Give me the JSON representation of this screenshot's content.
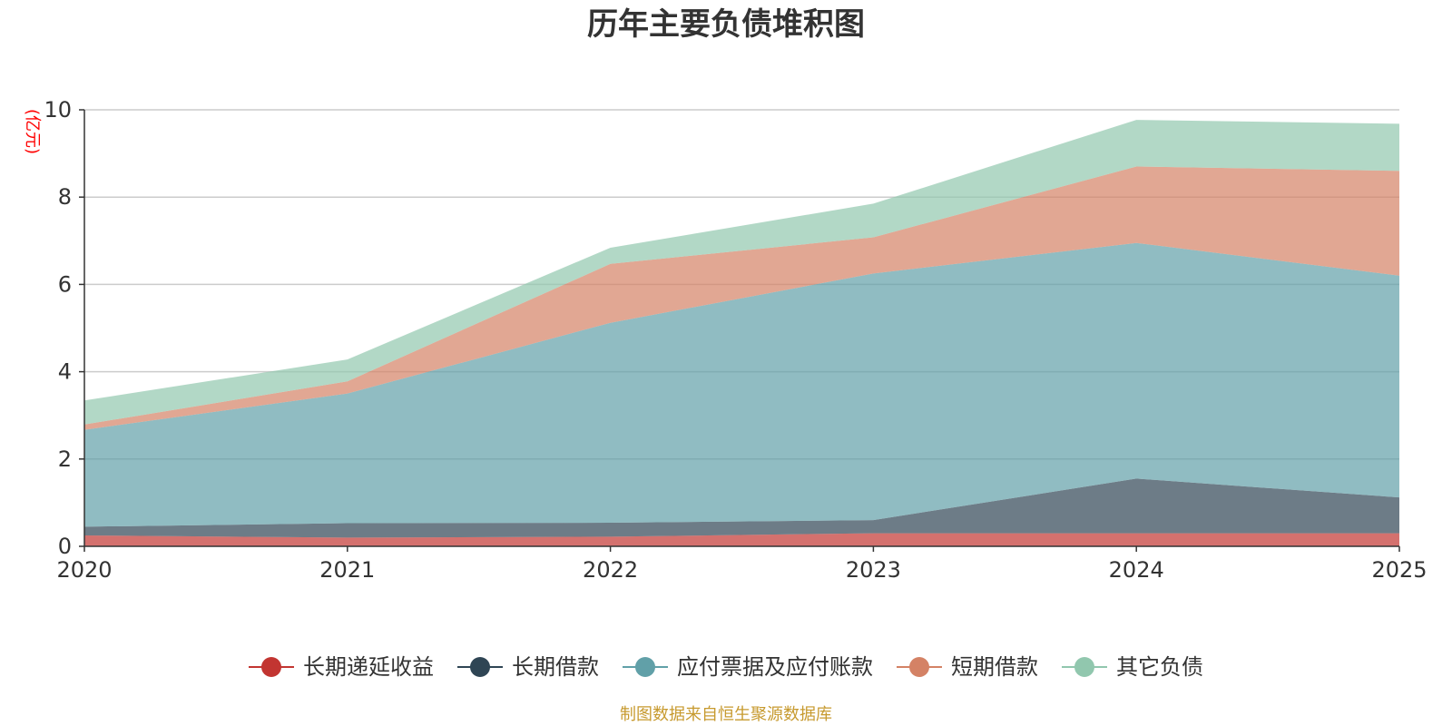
{
  "colors": {
    "series": [
      "#c23531",
      "#2f4554",
      "#61a0a8",
      "#d48265",
      "#91c7ae"
    ],
    "unit": "#ff0000",
    "source": "#c79a2f",
    "grid": "#cccccc",
    "axis": "#333333"
  },
  "source_text": "制图数据来自恒生聚源数据库",
  "chart_data": {
    "type": "area",
    "stacked": true,
    "title": "历年主要负债堆积图",
    "ylabel": "(亿元)",
    "xlabel": "",
    "ylim": [
      0,
      10
    ],
    "y_ticks": [
      "0",
      "2",
      "4",
      "6",
      "8",
      "10"
    ],
    "categories": [
      "2020",
      "2021",
      "2022",
      "2023",
      "2024",
      "2025"
    ],
    "series": [
      {
        "name": "长期递延收益",
        "values": [
          0.25,
          0.2,
          0.22,
          0.3,
          0.3,
          0.3
        ]
      },
      {
        "name": "长期借款",
        "values": [
          0.2,
          0.33,
          0.32,
          0.3,
          1.25,
          0.82
        ]
      },
      {
        "name": "应付票据及应付账款",
        "values": [
          2.22,
          2.97,
          4.58,
          5.65,
          5.4,
          5.08
        ]
      },
      {
        "name": "短期借款",
        "values": [
          0.12,
          0.28,
          1.35,
          0.83,
          1.75,
          2.4
        ]
      },
      {
        "name": "其它负债",
        "values": [
          0.55,
          0.5,
          0.37,
          0.77,
          1.07,
          1.08
        ]
      }
    ],
    "legend_position": "bottom"
  }
}
